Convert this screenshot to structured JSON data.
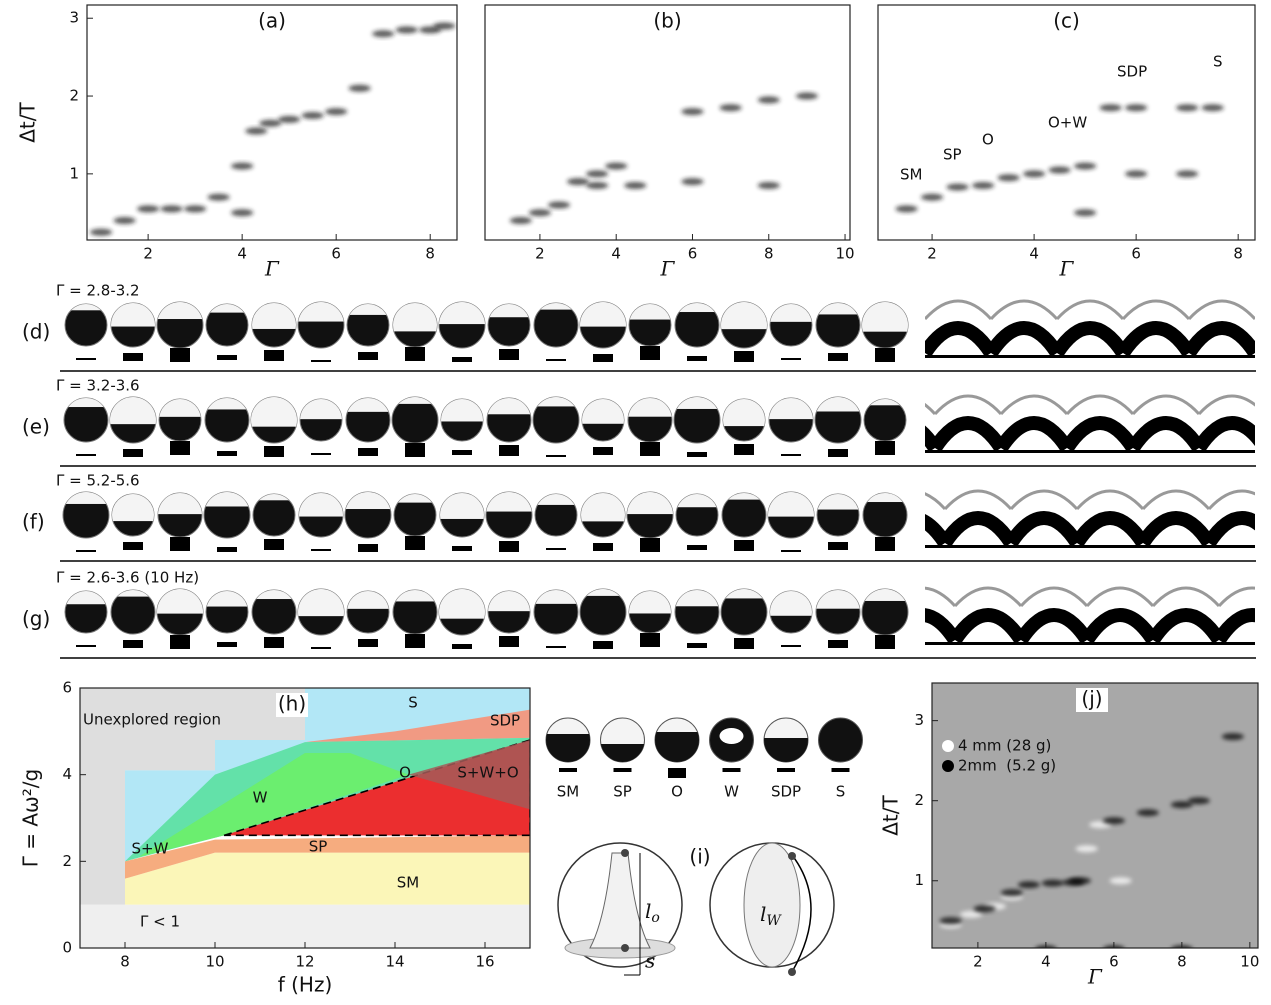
{
  "chart_data": [
    {
      "type": "scatter",
      "title": "(a)",
      "x_label": "Γ",
      "y_label": "Δt/T",
      "xlim": [
        0.7,
        8.57
      ],
      "ylim": [
        0.15,
        3.17
      ],
      "xticks": [
        2,
        4,
        6,
        8
      ],
      "yticks": [
        1,
        2,
        3
      ],
      "series": [
        {
          "color": "#222222",
          "x": [
            1,
            1.5,
            2,
            2.5,
            3,
            3.5,
            4,
            4,
            4.3,
            4.6,
            5,
            5.5,
            6,
            6.5,
            7,
            7.5,
            8,
            8.3
          ],
          "values": [
            0.25,
            0.4,
            0.55,
            0.55,
            0.55,
            0.7,
            0.5,
            1.1,
            1.55,
            1.65,
            1.7,
            1.75,
            1.8,
            2.1,
            2.8,
            2.85,
            2.85,
            2.9
          ]
        }
      ]
    },
    {
      "type": "scatter",
      "title": "(b)",
      "x_label": "Γ",
      "xlim": [
        0.56,
        10.13
      ],
      "ylim": [
        0.15,
        3.17
      ],
      "xticks": [
        2,
        4,
        6,
        8,
        10
      ],
      "series": [
        {
          "color": "#222222",
          "x": [
            1.5,
            2,
            2.5,
            3,
            3.5,
            4,
            3.5,
            4.5,
            6,
            7,
            8,
            9,
            6,
            8
          ],
          "values": [
            0.4,
            0.5,
            0.6,
            0.9,
            1.0,
            1.1,
            0.85,
            0.85,
            1.8,
            1.85,
            1.95,
            2.0,
            0.9,
            0.85
          ]
        }
      ]
    },
    {
      "type": "scatter",
      "title": "(c)",
      "x_label": "Γ",
      "xlim": [
        0.94,
        8.33
      ],
      "ylim": [
        0.15,
        3.17
      ],
      "xticks": [
        2,
        4,
        6,
        8
      ],
      "annotations": [
        "SM",
        "SP",
        "O",
        "O+W",
        "SDP",
        "S"
      ],
      "series": [
        {
          "color": "#222222",
          "x": [
            1.5,
            2,
            2.5,
            3,
            3.5,
            4,
            4.5,
            5,
            5.5,
            6,
            7,
            7.5,
            5,
            6,
            7
          ],
          "values": [
            0.55,
            0.7,
            0.83,
            0.85,
            0.95,
            1.0,
            1.05,
            1.1,
            1.85,
            1.85,
            1.85,
            1.85,
            0.5,
            1.0,
            1.0
          ]
        }
      ]
    },
    {
      "type": "area",
      "title": "(h)",
      "x_label": "f (Hz)",
      "y_label": "Γ = Aω²/g",
      "xlim": [
        7,
        17
      ],
      "ylim": [
        0,
        6
      ],
      "xticks": [
        8,
        10,
        12,
        14,
        16
      ],
      "yticks": [
        0,
        2,
        4,
        6
      ],
      "series": [
        {
          "name": "Γ < 1",
          "color": "#eeeeee",
          "x": [
            7,
            17,
            17,
            7
          ],
          "values": [
            0,
            0,
            1,
            1
          ]
        },
        {
          "name": "Unexplored region",
          "color": "#dcdcdc",
          "x": [
            7,
            8,
            8,
            10,
            10,
            12,
            12,
            7
          ],
          "values": [
            1,
            1,
            4.1,
            4.1,
            4.8,
            4.8,
            6,
            6
          ]
        },
        {
          "name": "S",
          "color": "#aee6f6",
          "x": [
            8,
            8,
            10,
            10,
            12,
            12,
            17,
            17,
            10
          ],
          "values": [
            2,
            4.1,
            4.1,
            4.8,
            4.8,
            6,
            6,
            2.6,
            2.6
          ]
        },
        {
          "name": "SM",
          "color": "#fbf5b4",
          "x": [
            8,
            17,
            17,
            10,
            8
          ],
          "values": [
            1,
            1,
            2.2,
            2.2,
            1.6
          ]
        },
        {
          "name": "SP",
          "color": "#f6a878",
          "x": [
            8,
            10,
            17,
            17,
            10,
            8
          ],
          "values": [
            1.6,
            2.2,
            2.2,
            2.6,
            2.5,
            2.0
          ]
        },
        {
          "name": "SDP",
          "color": "#f4967c",
          "x": [
            12,
            14,
            17,
            17
          ],
          "values": [
            4.75,
            5.0,
            5.5,
            4.85
          ]
        },
        {
          "name": "S+W",
          "color": "#5fe0a4",
          "x": [
            8,
            10,
            12,
            17,
            17,
            10.2,
            8
          ],
          "values": [
            2.0,
            4.0,
            4.75,
            4.85,
            4.8,
            2.6,
            2.0
          ]
        },
        {
          "name": "W",
          "color": "#6cee6c",
          "x": [
            8.3,
            12,
            13,
            14.3,
            10.2
          ],
          "values": [
            2.1,
            4.5,
            4.5,
            4.0,
            2.6
          ]
        },
        {
          "name": "O",
          "color": "#ee2424",
          "x": [
            10.2,
            17,
            17
          ],
          "values": [
            2.6,
            4.8,
            2.6
          ]
        },
        {
          "name": "S+W+O",
          "color": "#a45a58",
          "x": [
            14.3,
            17,
            17
          ],
          "values": [
            4.0,
            4.8,
            3.2
          ]
        }
      ]
    },
    {
      "type": "scatter",
      "title": "(j)",
      "x_label": "Γ",
      "y_label": "Δt/T",
      "xlim": [
        0.65,
        10.24
      ],
      "ylim": [
        0.16,
        3.47
      ],
      "xticks": [
        2,
        4,
        6,
        8,
        10
      ],
      "yticks": [
        1,
        2,
        3
      ],
      "background": "#a8a8a8",
      "series": [
        {
          "name": "4 mm (28 g)",
          "color": "#ffffff",
          "x": [
            1.2,
            1.8,
            2.5,
            3,
            5.2,
            5.6,
            6.2
          ],
          "values": [
            0.45,
            0.58,
            0.68,
            0.8,
            1.4,
            1.7,
            1.0
          ]
        },
        {
          "name": "2mm  (5.2 g)",
          "color": "#000000",
          "x": [
            1.2,
            2.2,
            3,
            3.5,
            4.2,
            4.8,
            5,
            6,
            7,
            8,
            8.5,
            9.5,
            4,
            6,
            8
          ],
          "values": [
            0.5,
            0.65,
            0.85,
            0.95,
            0.97,
            0.98,
            1.0,
            1.75,
            1.85,
            1.95,
            2.0,
            2.8,
            0.15,
            0.15,
            0.15
          ]
        }
      ]
    }
  ],
  "photo_rows": [
    {
      "label": "(d)",
      "gamma": "Γ = 2.8-3.2"
    },
    {
      "label": "(e)",
      "gamma": "Γ = 3.2-3.6"
    },
    {
      "label": "(f)",
      "gamma": "Γ = 5.2-5.6"
    },
    {
      "label": "(g)",
      "gamma": "Γ = 2.6-3.6 (10 Hz)"
    }
  ],
  "panel_i": {
    "label": "(i)",
    "states": [
      "SM",
      "SP",
      "O",
      "W",
      "SDP",
      "S"
    ],
    "lo": "l",
    "lo_sub": "o",
    "s": "s",
    "lw": "l",
    "lw_sub": "W"
  }
}
